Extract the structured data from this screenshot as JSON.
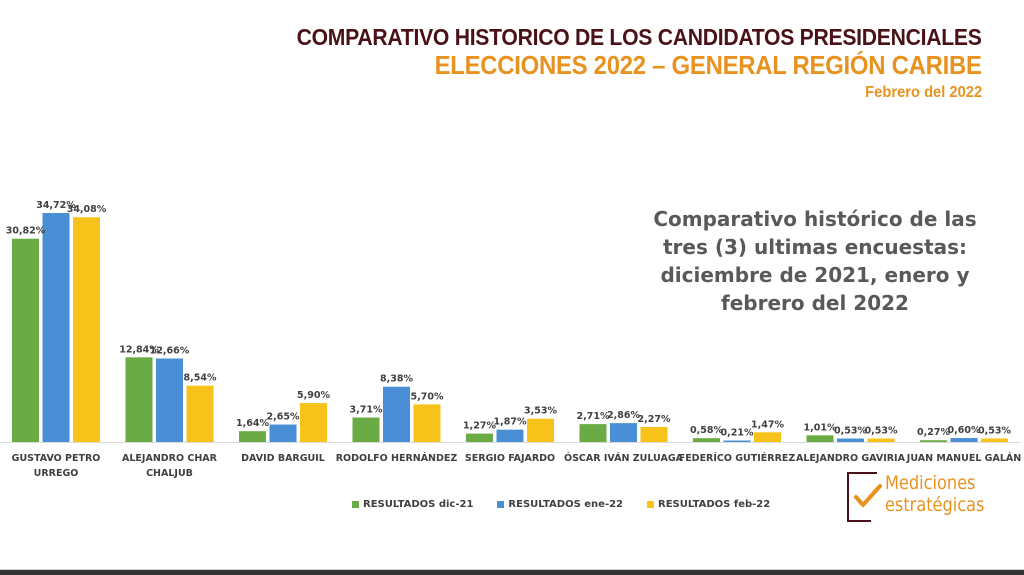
{
  "header": {
    "title": "COMPARATIVO HISTORICO DE LOS CANDIDATOS PRESIDENCIALES",
    "subtitle": "ELECCIONES 2022 – GENERAL REGIÓN CARIBE",
    "date": "Febrero del 2022"
  },
  "note": {
    "lines": [
      "Comparativo histórico de las",
      "tres (3) ultimas encuestas:",
      "diciembre de 2021, enero y",
      "febrero del 2022"
    ]
  },
  "logo": {
    "line1": "Mediciones",
    "line2": "estratégicas"
  },
  "colors": {
    "dic": "#6aab45",
    "ene": "#4a8fd6",
    "feb": "#f7c21a",
    "title_dark": "#4a1218",
    "title_orange": "#e8921f"
  },
  "chart_data": {
    "type": "bar",
    "title": "COMPARATIVO HISTORICO DE LOS CANDIDATOS PRESIDENCIALES",
    "xlabel": "",
    "ylabel": "",
    "ylim": [
      0,
      36
    ],
    "grid": false,
    "legend_position": "bottom",
    "categories": [
      [
        "GUSTAVO PETRO",
        "URREGO"
      ],
      [
        "ALEJANDRO CHAR",
        "CHALJUB"
      ],
      [
        "DAVID BARGUIL"
      ],
      [
        "RODOLFO HERNÁNDEZ"
      ],
      [
        "SERGIO FAJARDO"
      ],
      [
        "ÓSCAR IVÁN ZULUAGA"
      ],
      [
        "FEDERÍCO GUTIÉRREZ"
      ],
      [
        "ALEJANDRO GAVIRIA"
      ],
      [
        "JUAN MANUEL GALÁN"
      ]
    ],
    "series": [
      {
        "name": "RESULTADOS dic-21",
        "color": "#6aab45",
        "values": [
          30.82,
          12.84,
          1.64,
          3.71,
          1.27,
          2.71,
          0.58,
          1.01,
          0.27
        ],
        "labels": [
          "30,82%",
          "12,84%",
          "1,64%",
          "3,71%",
          "1,27%",
          "2,71%",
          "0,58%",
          "1,01%",
          "0,27%"
        ]
      },
      {
        "name": "RESULTADOS ene-22",
        "color": "#4a8fd6",
        "values": [
          34.72,
          12.66,
          2.65,
          8.38,
          1.87,
          2.86,
          0.21,
          0.53,
          0.6
        ],
        "labels": [
          "34,72%",
          "12,66%",
          "2,65%",
          "8,38%",
          "1,87%",
          "2,86%",
          "0,21%",
          "0,53%",
          "0,60%"
        ]
      },
      {
        "name": "RESULTADOS feb-22",
        "color": "#f7c21a",
        "values": [
          34.08,
          8.54,
          5.9,
          5.7,
          3.53,
          2.27,
          1.47,
          0.53,
          0.53
        ],
        "labels": [
          "34,08%",
          "8,54%",
          "5,90%",
          "5,70%",
          "3,53%",
          "2,27%",
          "1,47%",
          "0,53%",
          "0,53%"
        ]
      }
    ]
  }
}
